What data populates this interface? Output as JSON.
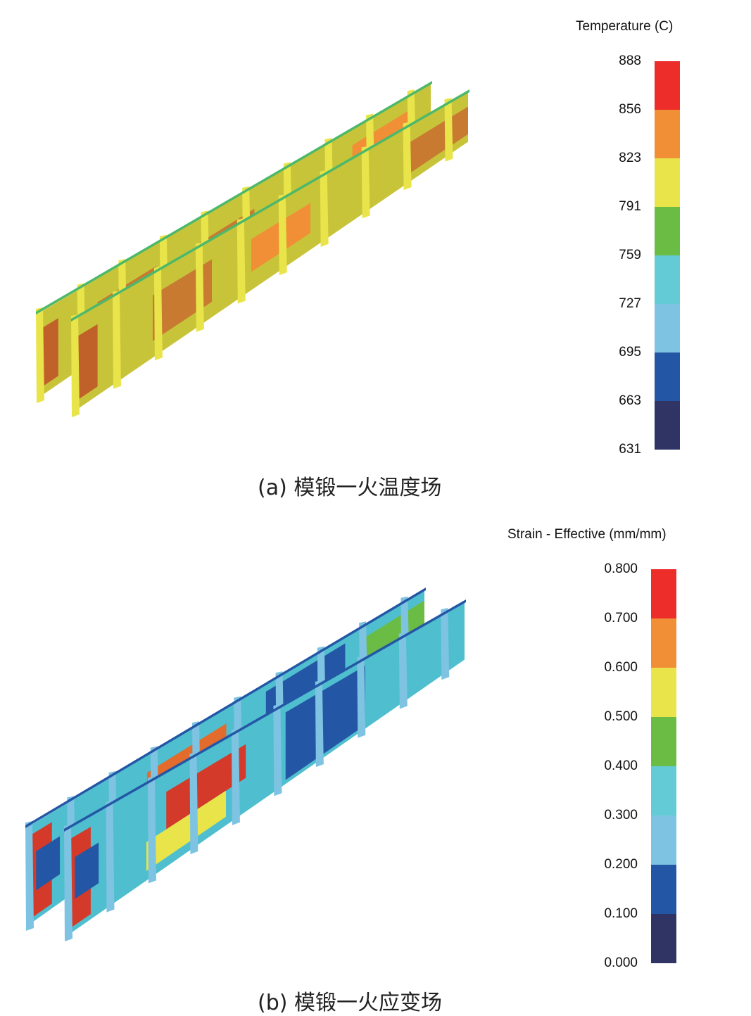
{
  "panel_a": {
    "caption": "(a) 模锻一火温度场",
    "legend": {
      "title": "Temperature (C)",
      "ticks": [
        "888",
        "856",
        "823",
        "791",
        "759",
        "727",
        "695",
        "663",
        "631"
      ],
      "colors": [
        "#ec2d2a",
        "#f08f35",
        "#e8e44a",
        "#6bbc45",
        "#62cbd6",
        "#7ec3e1",
        "#2456a6",
        "#2f3465"
      ]
    },
    "dominant_colors": {
      "body": "#c8c43a",
      "hot": "#c77a30",
      "ribs": "#e8e44a"
    }
  },
  "panel_b": {
    "caption": "(b) 模锻一火应变场",
    "legend": {
      "title": "Strain - Effective (mm/mm)",
      "ticks": [
        "0.800",
        "0.700",
        "0.600",
        "0.500",
        "0.400",
        "0.300",
        "0.200",
        "0.100",
        "0.000"
      ],
      "colors": [
        "#ec2d2a",
        "#f08f35",
        "#e8e44a",
        "#6bbc45",
        "#62cbd6",
        "#7ec3e1",
        "#2456a6",
        "#2f3465"
      ]
    },
    "dominant_colors": {
      "body": "#4fbfcf",
      "low": "#2456a6",
      "high": "#d33a2a"
    }
  }
}
